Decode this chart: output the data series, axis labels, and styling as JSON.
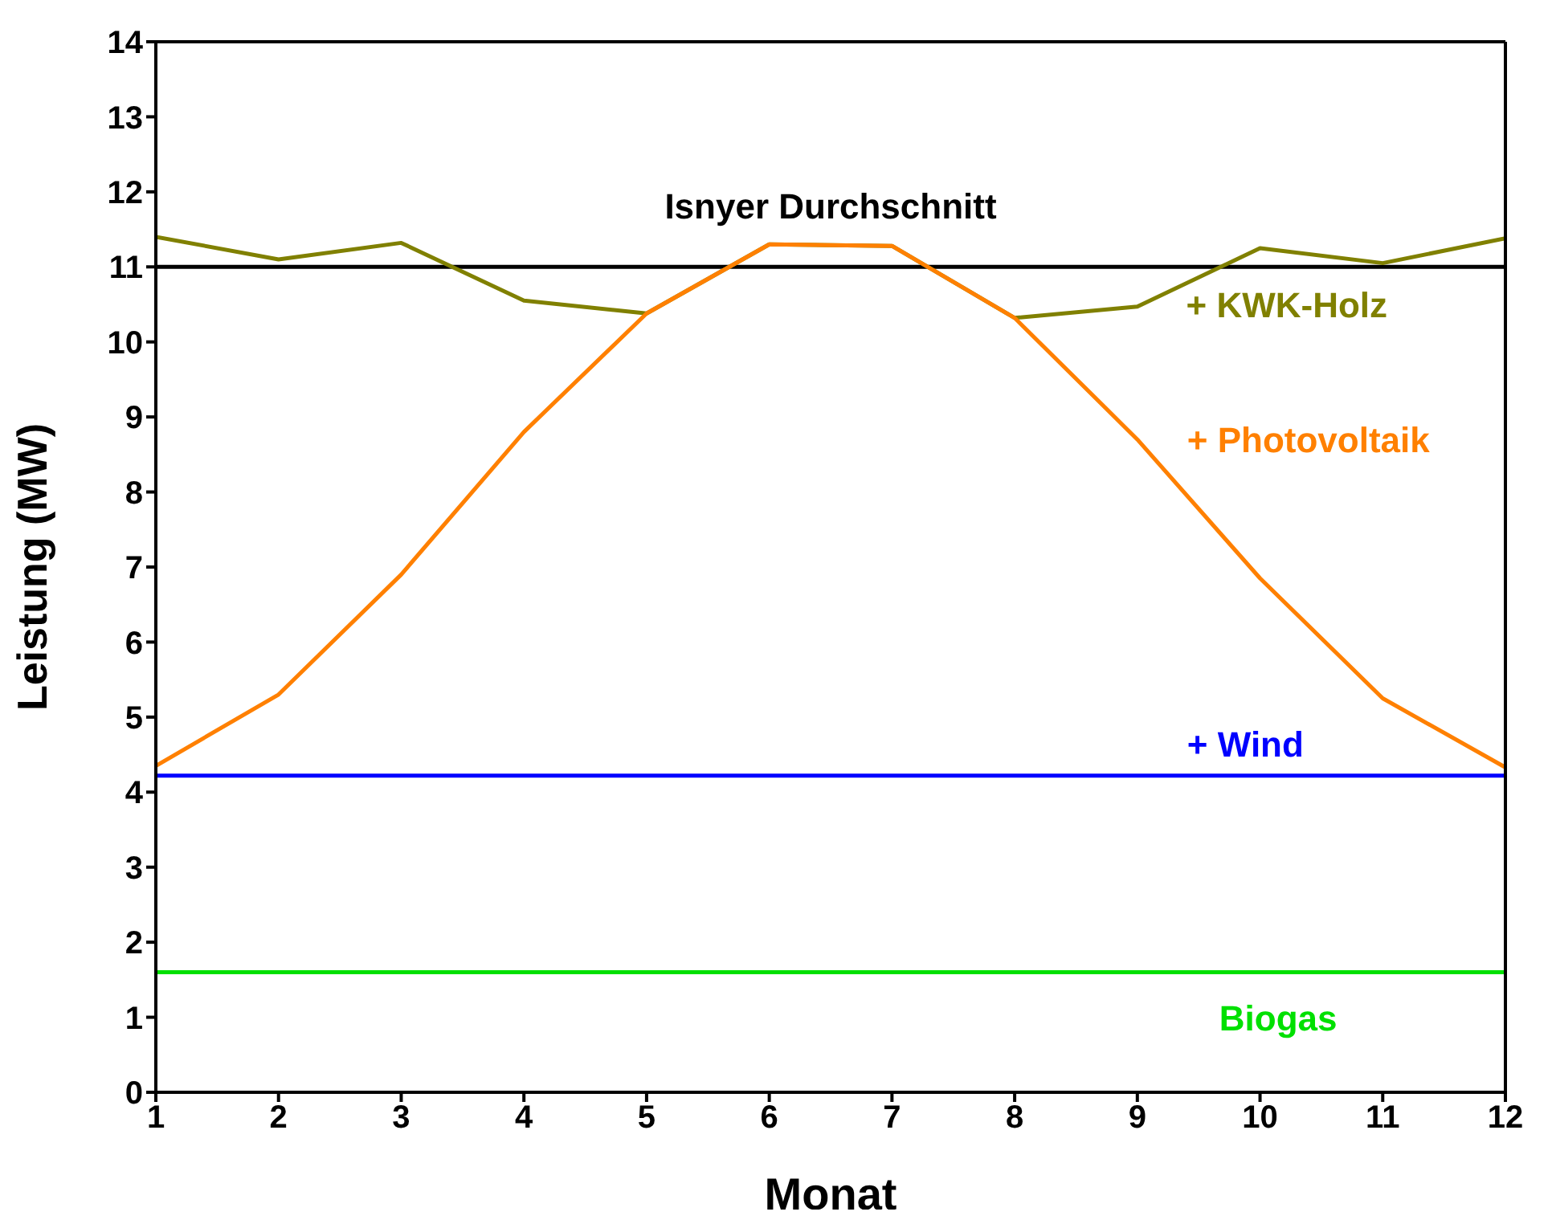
{
  "chart_data": {
    "type": "line",
    "xlabel": "Monat",
    "ylabel": "Leistung (MW)",
    "x": [
      1,
      2,
      3,
      4,
      5,
      6,
      7,
      8,
      9,
      10,
      11,
      12
    ],
    "series": [
      {
        "name": "+ KWK-Holz",
        "color": "#808000",
        "values": [
          11.4,
          11.1,
          11.32,
          10.55,
          10.38,
          11.3,
          11.28,
          10.32,
          10.47,
          11.25,
          11.05,
          11.38
        ]
      },
      {
        "name": "+ Photovoltaik",
        "color": "#ff8000",
        "values": [
          4.35,
          5.3,
          6.9,
          8.8,
          10.38,
          11.3,
          11.28,
          10.32,
          8.7,
          6.85,
          5.25,
          4.33
        ]
      },
      {
        "name": "+ Wind",
        "color": "#0000ff",
        "values": [
          4.22,
          4.22,
          4.22,
          4.22,
          4.22,
          4.22,
          4.22,
          4.22,
          4.22,
          4.22,
          4.22,
          4.22
        ]
      },
      {
        "name": "Biogas",
        "color": "#00e000",
        "values": [
          1.6,
          1.6,
          1.6,
          1.6,
          1.6,
          1.6,
          1.6,
          1.6,
          1.6,
          1.6,
          1.6,
          1.6
        ]
      }
    ],
    "ref_lines": [
      {
        "axis": "y",
        "value": 11,
        "label": "Isnyer Durchschnitt",
        "color": "#000000"
      }
    ],
    "xlim": [
      1,
      12
    ],
    "xticks": [
      1,
      2,
      3,
      4,
      5,
      6,
      7,
      8,
      9,
      10,
      11,
      12
    ],
    "ylim": [
      0,
      14
    ],
    "yticks": [
      0,
      1,
      2,
      3,
      4,
      5,
      6,
      7,
      8,
      9,
      10,
      11,
      12,
      13,
      14
    ],
    "marker": "none",
    "line_style": "solid"
  }
}
